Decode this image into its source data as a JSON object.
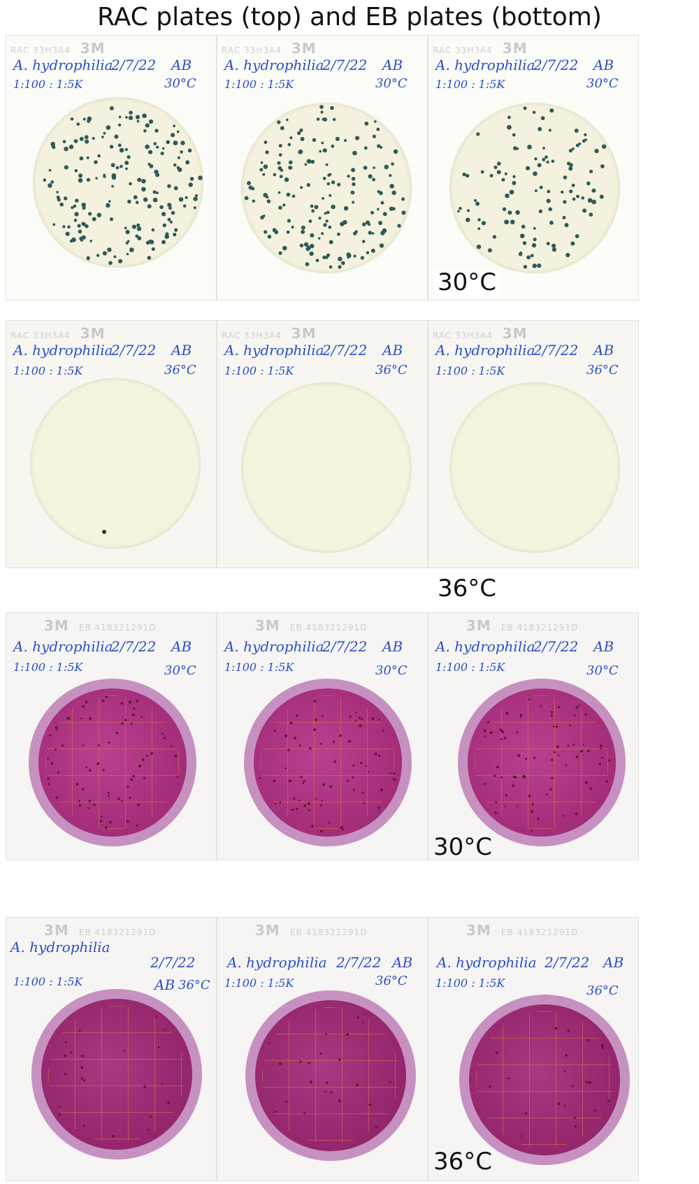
{
  "title": "RAC plates (top) and EB plates (bottom)",
  "rows": [
    {
      "type": "RAC",
      "side_label": "30°C",
      "header_text": "RAC 33H3A4",
      "header_mark": "3M",
      "plates": [
        {
          "name": "A. hydrophilia",
          "date": "2/7/22",
          "initials": "AB",
          "ratio": "1:100 : 1:5K",
          "temp": "30°C",
          "colonies": "many"
        },
        {
          "name": "A. hydrophilia",
          "date": "2/7/22",
          "initials": "AB",
          "ratio": "1:100 : 1:5K",
          "temp": "30°C",
          "colonies": "many"
        },
        {
          "name": "A. hydrophilia",
          "date": "2/7/22",
          "initials": "AB",
          "ratio": "1:100 : 1:5K",
          "temp": "30°C",
          "colonies": "many"
        }
      ]
    },
    {
      "type": "RAC",
      "side_label": "36°C",
      "header_text": "RAC 33H3A4",
      "header_mark": "3M",
      "plates": [
        {
          "name": "A. hydrophilia",
          "date": "2/7/22",
          "initials": "AB",
          "ratio": "1:100 : 1:5K",
          "temp": "36°C",
          "colonies": "none"
        },
        {
          "name": "A. hydrophilia",
          "date": "2/7/22",
          "initials": "AB",
          "ratio": "1:100 : 1:5K",
          "temp": "36°C",
          "colonies": "none"
        },
        {
          "name": "A. hydrophilia",
          "date": "2/7/22",
          "initials": "AB",
          "ratio": "1:100 : 1:5K",
          "temp": "36°C",
          "colonies": "none"
        }
      ]
    },
    {
      "type": "EB",
      "side_label": "30°C",
      "header_text": "EB 418321291D",
      "header_mark": "3M",
      "plates": [
        {
          "name": "A. hydrophilia",
          "date": "2/7/22",
          "initials": "AB",
          "ratio": "1:100 : 1:5K",
          "temp": "30°C",
          "colonies": "many"
        },
        {
          "name": "A. hydrophilia",
          "date": "2/7/22",
          "initials": "AB",
          "ratio": "1:100 : 1:5K",
          "temp": "30°C",
          "colonies": "many"
        },
        {
          "name": "A. hydrophilia",
          "date": "2/7/22",
          "initials": "AB",
          "ratio": "1:100 : 1:5K",
          "temp": "30°C",
          "colonies": "many"
        }
      ]
    },
    {
      "type": "EB",
      "side_label": "36°C",
      "header_text": "EB 418321291D",
      "header_mark": "3M",
      "plates": [
        {
          "name": "A. hydrophilia",
          "date": "2/7/22",
          "initials": "AB",
          "ratio": "1:100 : 1:5K",
          "temp": "36°C",
          "colonies": "few"
        },
        {
          "name": "A. hydrophilia",
          "date": "2/7/22",
          "initials": "AB",
          "ratio": "1:100 : 1:5K",
          "temp": "36°C",
          "colonies": "few"
        },
        {
          "name": "A. hydrophilia",
          "date": "2/7/22",
          "initials": "AB",
          "ratio": "1:100 : 1:5K",
          "temp": "36°C",
          "colonies": "few"
        }
      ]
    }
  ],
  "colors": {
    "ink": "#2b4fc6",
    "rac_colony": "#2f5a5a",
    "eb_colony": "#5a1a2a",
    "eb_medium": "#a8307e"
  }
}
